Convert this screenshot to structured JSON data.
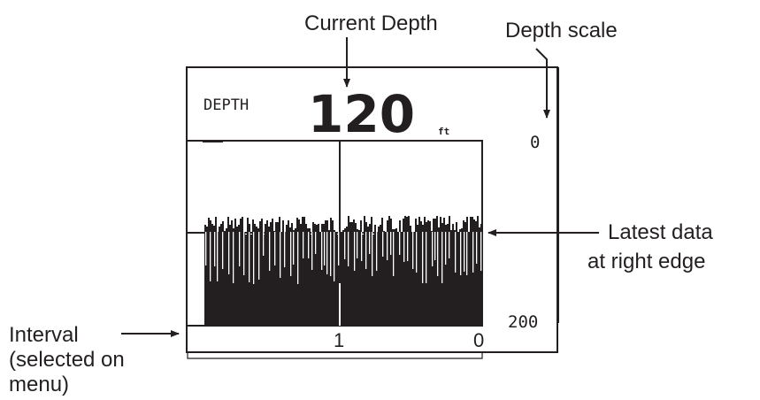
{
  "callouts": {
    "current_depth": "Current Depth",
    "depth_scale": "Depth scale",
    "latest_data_line1": "Latest data",
    "latest_data_line2": "at right edge",
    "interval_line1": "Interval",
    "interval_line2": "(selected on",
    "interval_line3": "menu)"
  },
  "display": {
    "depth_label": "DEPTH",
    "depth_value": "120",
    "depth_unit": "ft",
    "scale_top": "0",
    "scale_bottom": "200",
    "axis_tick_left": "1",
    "axis_tick_right": "0"
  },
  "colors": {
    "ink": "#231f20",
    "background": "#ffffff"
  }
}
